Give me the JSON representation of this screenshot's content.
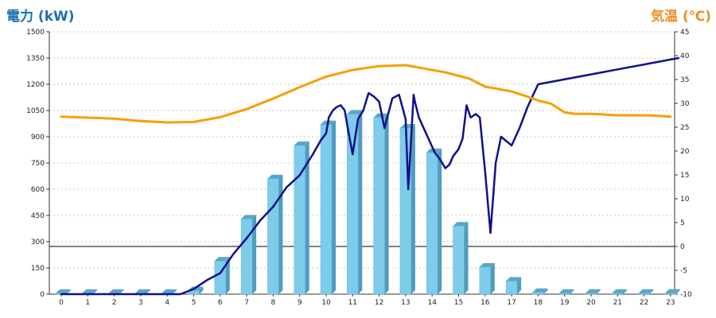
{
  "chart_data": {
    "type": "bar",
    "title_left": "電力 (kW)",
    "title_right": "気温 (℃)",
    "categories": [
      "0",
      "1",
      "2",
      "3",
      "4",
      "5",
      "6",
      "7",
      "8",
      "9",
      "10",
      "11",
      "12",
      "13",
      "14",
      "15",
      "16",
      "17",
      "18",
      "19",
      "20",
      "21",
      "22",
      "23"
    ],
    "y_left": {
      "min": 0,
      "max": 1500,
      "ticks": [
        0,
        150,
        300,
        450,
        600,
        750,
        900,
        1050,
        1200,
        1350,
        1500
      ]
    },
    "y_right": {
      "min": -10,
      "max": 45,
      "ticks": [
        -10,
        -5,
        0,
        5,
        10,
        15,
        20,
        25,
        30,
        35,
        40,
        45
      ]
    },
    "grid": true,
    "series": [
      {
        "kind": "bar",
        "axis": "left",
        "values": [
          5,
          5,
          5,
          5,
          5,
          20,
          190,
          430,
          660,
          850,
          970,
          1030,
          1010,
          950,
          810,
          390,
          155,
          75,
          10,
          5,
          5,
          5,
          5,
          5
        ],
        "color": "#7ecbea"
      },
      {
        "kind": "line",
        "axis": "left",
        "color": "#10108c",
        "x": [
          0,
          4.5,
          5,
          5.5,
          6,
          6.5,
          7,
          7.5,
          8,
          8.5,
          9,
          9.5,
          9.8,
          10,
          10.1,
          10.25,
          10.4,
          10.55,
          10.7,
          10.85,
          11,
          11.2,
          11.4,
          11.6,
          11.8,
          12,
          12.2,
          12.5,
          12.75,
          13,
          13.1,
          13.3,
          13.35,
          13.5,
          13.65,
          13.8,
          13.95,
          14.1,
          14.3,
          14.5,
          14.65,
          14.8,
          14.9,
          15,
          15.15,
          15.3,
          15.45,
          15.65,
          15.8,
          16,
          16.2,
          16.4,
          16.6,
          17,
          17.3,
          17.6,
          18,
          23.3
        ],
        "y": [
          0,
          0,
          30,
          80,
          120,
          230,
          320,
          420,
          500,
          610,
          680,
          800,
          880,
          920,
          1010,
          1050,
          1070,
          1080,
          1050,
          920,
          800,
          1000,
          1050,
          1150,
          1130,
          1100,
          950,
          1120,
          1140,
          1000,
          600,
          1140,
          1100,
          1010,
          960,
          910,
          860,
          810,
          770,
          720,
          740,
          790,
          810,
          830,
          890,
          1080,
          1010,
          1030,
          1010,
          700,
          350,
          750,
          900,
          850,
          950,
          1070,
          1200,
          1350
        ]
      },
      {
        "kind": "line",
        "axis": "right",
        "color": "#f5a000",
        "x": [
          0,
          1,
          2,
          3,
          4,
          5,
          6,
          7,
          8,
          9,
          10,
          11,
          12,
          13,
          13.8,
          14.5,
          15.4,
          16,
          17,
          17.6,
          18,
          18.5,
          19,
          19.4,
          20,
          21,
          22,
          22.5,
          23
        ],
        "y": [
          27.2,
          27,
          26.8,
          26.3,
          26,
          26.1,
          27.1,
          28.8,
          31,
          33.4,
          35.6,
          37,
          37.8,
          38,
          37.2,
          36.5,
          35.2,
          33.5,
          32.5,
          31.4,
          30.6,
          29.9,
          28.1,
          27.8,
          27.8,
          27.5,
          27.5,
          27.4,
          27.2
        ]
      }
    ]
  }
}
